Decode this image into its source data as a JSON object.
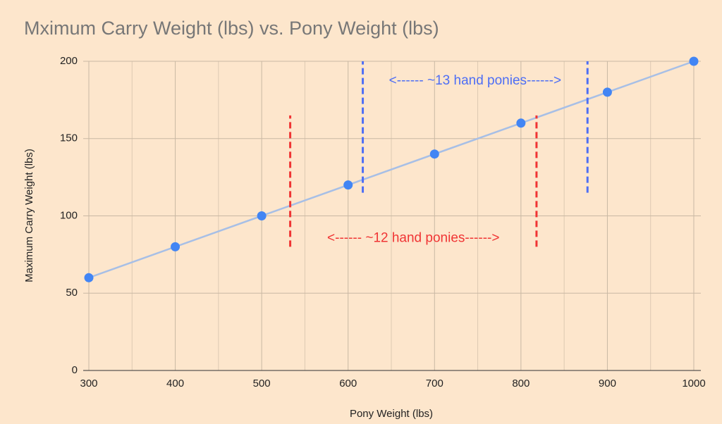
{
  "chart_data": {
    "type": "scatter",
    "title": "Mximum Carry Weight (lbs) vs. Pony Weight (lbs)",
    "x_label": "Pony Weight (lbs)",
    "y_label": "Maximum Carry Weight (lbs)",
    "series": [
      {
        "color": "#4285f4",
        "x": [
          300,
          400,
          500,
          600,
          700,
          800,
          900,
          1000
        ],
        "values": [
          60,
          80,
          100,
          120,
          140,
          160,
          180,
          200
        ]
      }
    ],
    "trendline": true,
    "trendline_color": "#a7bfe6",
    "xlim": [
      300,
      1000
    ],
    "ylim": [
      0,
      200
    ],
    "xticks": [
      300,
      400,
      500,
      600,
      700,
      800,
      900,
      1000
    ],
    "yticks": [
      0,
      50,
      100,
      150,
      200
    ],
    "grid": true,
    "minor_grid": true,
    "annotations": [
      {
        "text": "<------ ~13 hand ponies------>",
        "color": "#4d6ef5",
        "x": [
          617,
          877
        ],
        "y": [
          115,
          200
        ]
      },
      {
        "text": "<------ ~12 hand ponies------>",
        "color": "#f03434",
        "x": [
          533,
          818
        ],
        "y": [
          80,
          165
        ]
      }
    ]
  }
}
